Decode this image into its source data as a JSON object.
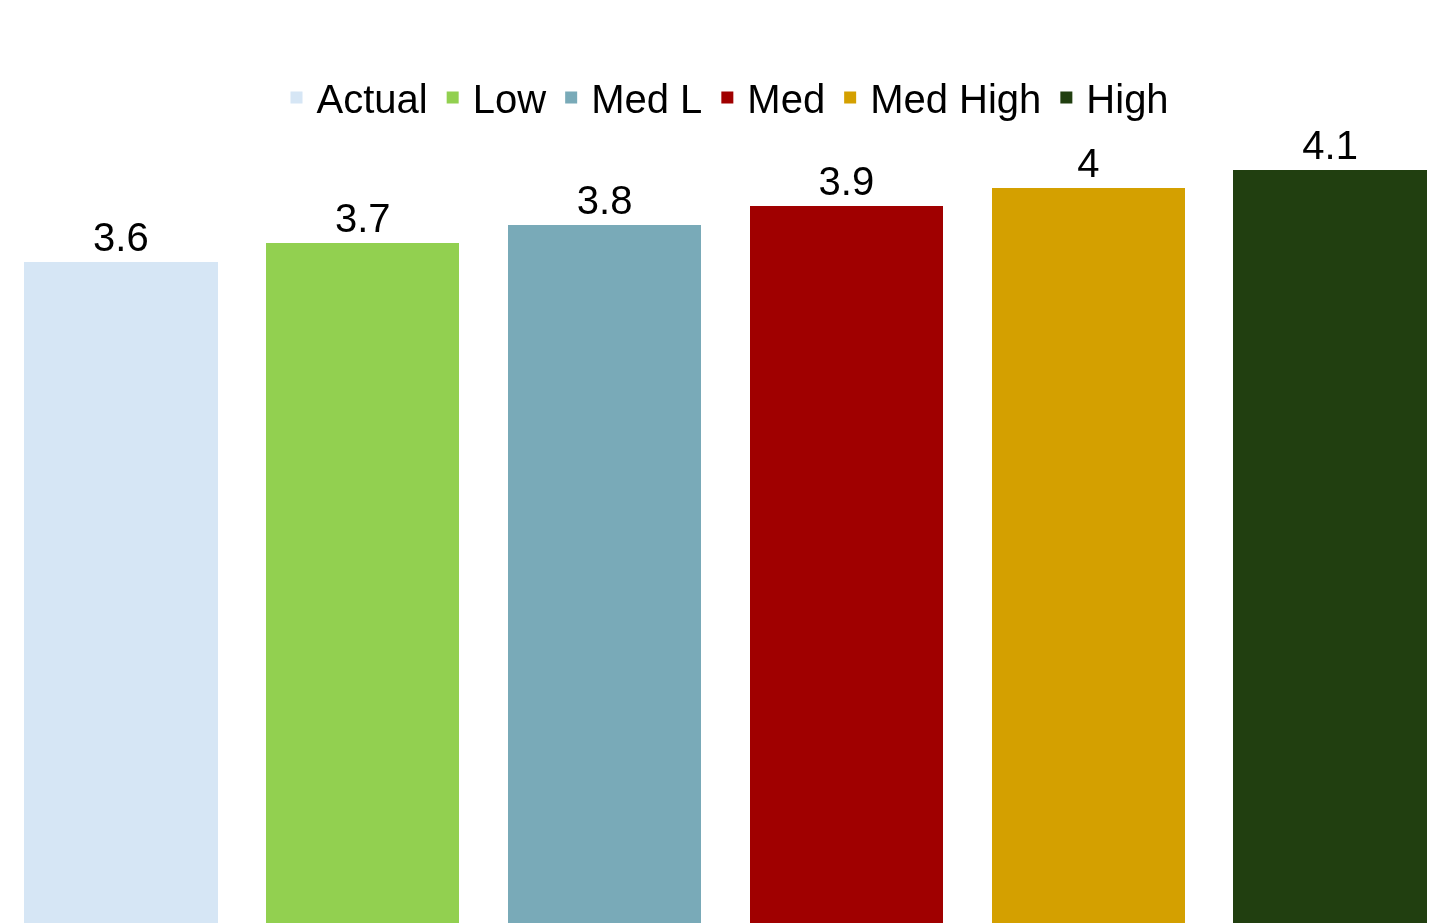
{
  "chart_data": {
    "type": "bar",
    "categories": [
      null,
      null,
      null,
      null,
      null,
      null
    ],
    "stacked": true,
    "series": [
      {
        "name": "Actual",
        "color": "#d6e6f5",
        "values": [
          3.6,
          null,
          null,
          null,
          null,
          null
        ]
      },
      {
        "name": "Low",
        "color": "#92d050",
        "values": [
          null,
          3.7,
          null,
          null,
          null,
          null
        ]
      },
      {
        "name": "Med L",
        "color": "#79aab8",
        "values": [
          null,
          null,
          3.8,
          null,
          null,
          null
        ]
      },
      {
        "name": "Med",
        "color": "#a00000",
        "values": [
          null,
          null,
          null,
          3.9,
          null,
          null
        ]
      },
      {
        "name": "Med High",
        "color": "#d4a000",
        "values": [
          null,
          null,
          null,
          null,
          4,
          null
        ]
      },
      {
        "name": "High",
        "color": "#213f10",
        "values": [
          null,
          null,
          null,
          null,
          null,
          4.1
        ]
      }
    ],
    "data_labels": true,
    "legend": "top",
    "tick_labels": false
  }
}
